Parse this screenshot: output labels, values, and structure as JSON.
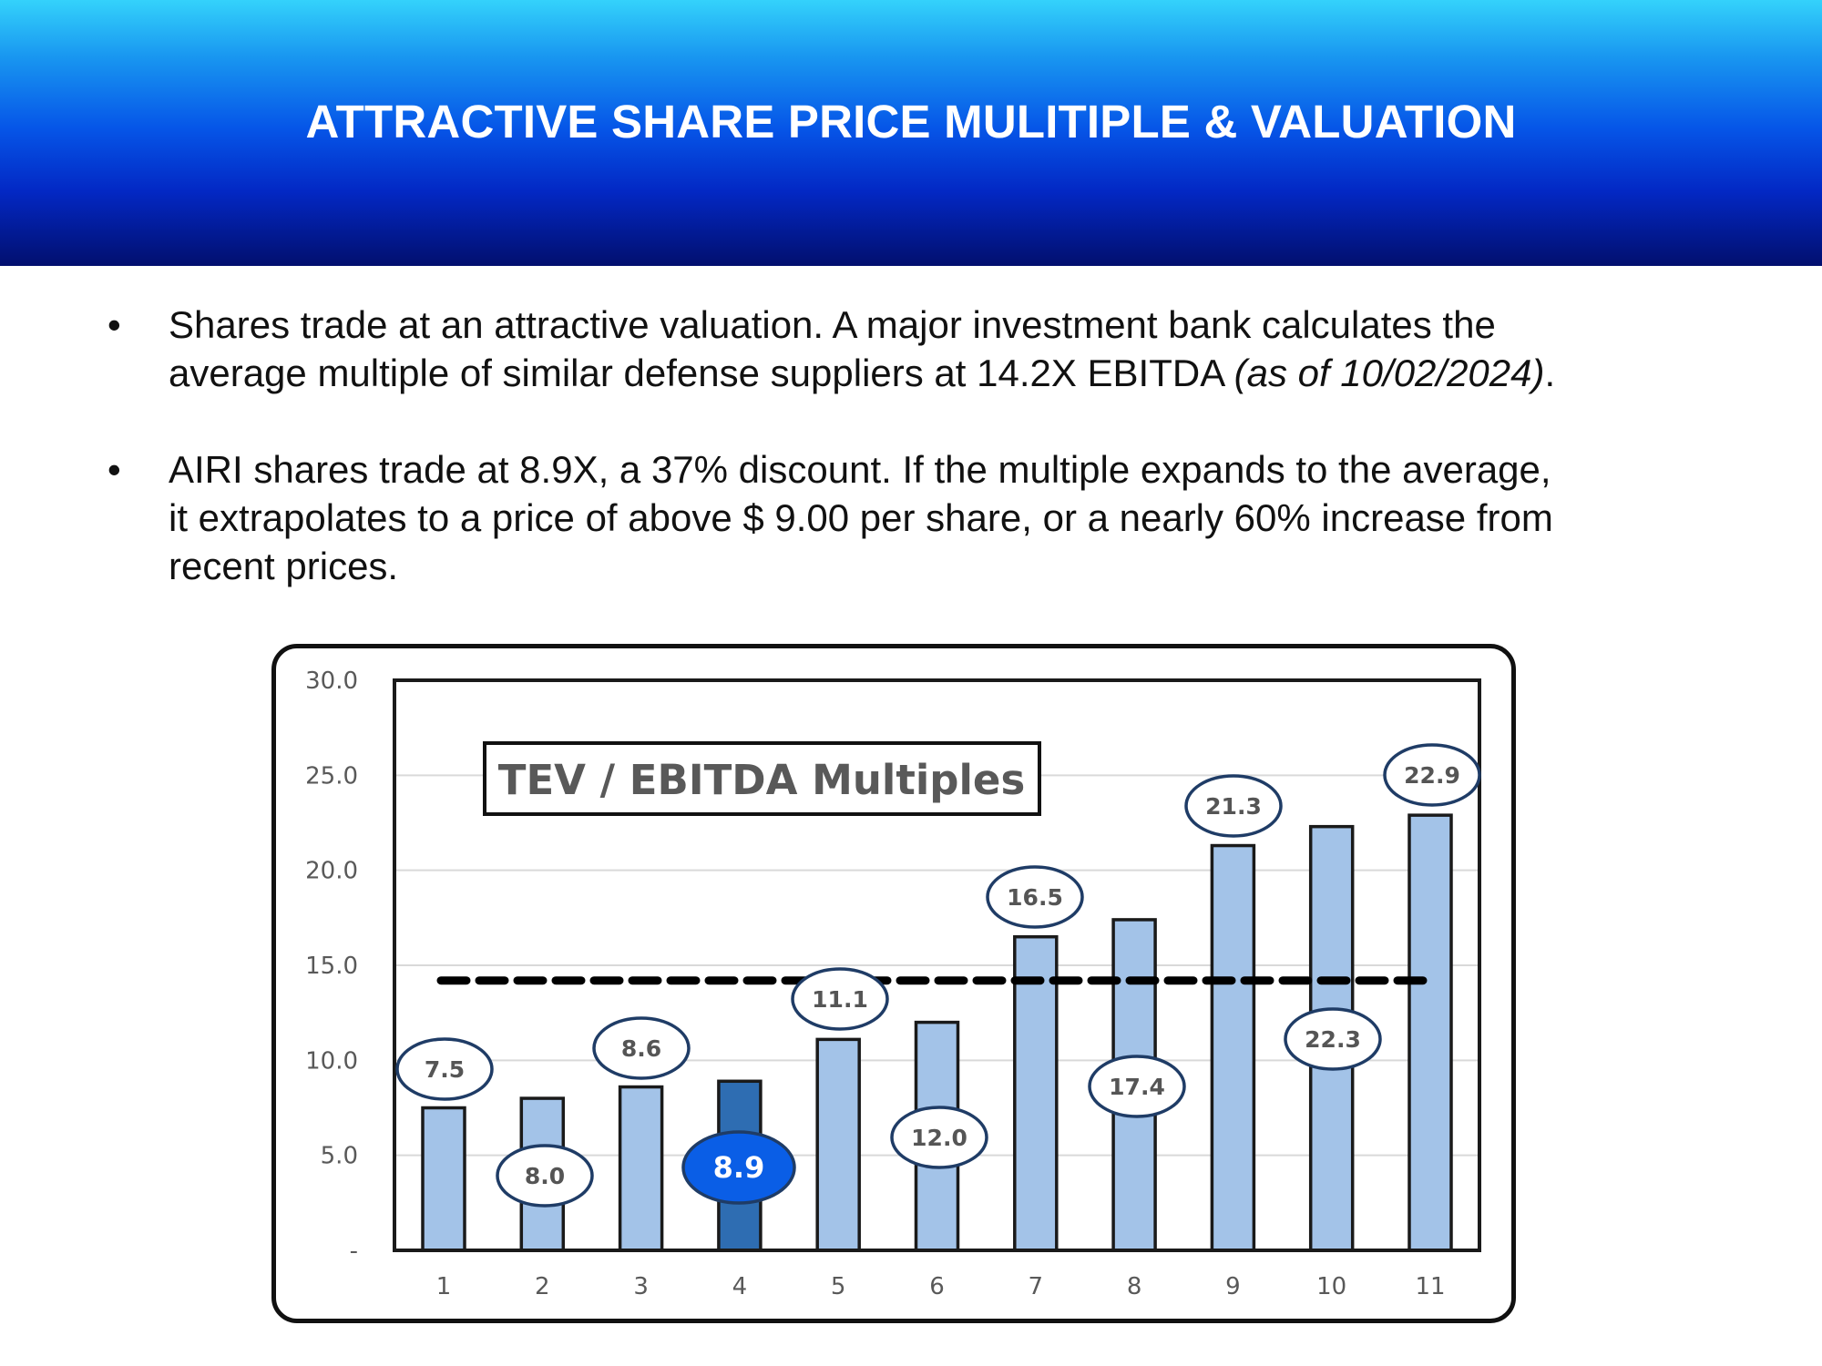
{
  "header": {
    "title": "ATTRACTIVE SHARE PRICE MULITIPLE & VALUATION"
  },
  "bullets": [
    {
      "marker": "•",
      "line1": "Shares trade at an attractive valuation. A major investment bank calculates the",
      "line2": "average multiple of similar defense suppliers at 14.2X EBITDA ",
      "line2_italic": "(as of 10/02/2024)",
      "line2_end": "."
    },
    {
      "marker": "•",
      "line1": "AIRI shares trade at 8.9X, a 37% discount. If the multiple expands to the average,",
      "line2": "it extrapolates to a price of above $ 9.00 per share, or a nearly 60% increase from",
      "line3": "recent prices."
    }
  ],
  "chart_data": {
    "type": "bar",
    "title": "TEV / EBITDA Multiples",
    "categories": [
      "1",
      "2",
      "3",
      "4",
      "5",
      "6",
      "7",
      "8",
      "9",
      "10",
      "11"
    ],
    "values": [
      7.5,
      8.0,
      8.6,
      8.9,
      11.1,
      12.0,
      16.5,
      17.4,
      21.3,
      22.3,
      22.9
    ],
    "value_labels": [
      "7.5",
      "8.0",
      "8.6",
      "8.9",
      "11.1",
      "12.0",
      "16.5",
      "17.4",
      "21.3",
      "22.3",
      "22.9"
    ],
    "highlight_index": 3,
    "y_ticks": [
      0,
      5,
      10,
      15,
      20,
      25,
      30
    ],
    "y_tick_labels": [
      "-",
      "5.0",
      "10.0",
      "15.0",
      "20.0",
      "25.0",
      "30.0"
    ],
    "ylim": [
      0,
      30
    ],
    "average_line": 14.2,
    "xlabel": "",
    "ylabel": "",
    "grid": true,
    "colors": {
      "bar": "#a3c3e8",
      "bar_highlight": "#2e6db2",
      "label_highlight": "#0a5ee6",
      "outline": "#1a1a1a",
      "ellipse_stroke": "#1f3c66",
      "label_text": "#555555",
      "grid": "#d9d9d9"
    }
  }
}
